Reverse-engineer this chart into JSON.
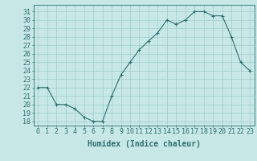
{
  "x": [
    0,
    1,
    2,
    3,
    4,
    5,
    6,
    7,
    8,
    9,
    10,
    11,
    12,
    13,
    14,
    15,
    16,
    17,
    18,
    19,
    20,
    21,
    22,
    23
  ],
  "y": [
    22,
    22,
    20,
    20,
    19.5,
    18.5,
    18,
    18,
    21,
    23.5,
    25,
    26.5,
    27.5,
    28.5,
    30,
    29.5,
    30,
    31,
    31,
    30.5,
    30.5,
    28,
    25,
    24
  ],
  "line_color": "#2e6e6e",
  "marker_color": "#2e6e6e",
  "bg_color": "#c8e8e8",
  "grid_color": "#a0cccc",
  "xlabel": "Humidex (Indice chaleur)",
  "xlabel_fontsize": 7,
  "ylabel_ticks": [
    18,
    19,
    20,
    21,
    22,
    23,
    24,
    25,
    26,
    27,
    28,
    29,
    30,
    31
  ],
  "ylim": [
    17.5,
    31.8
  ],
  "xlim": [
    -0.5,
    23.5
  ],
  "tick_fontsize": 6,
  "tick_color": "#2e6e6e",
  "label_color": "#2e6e6e"
}
